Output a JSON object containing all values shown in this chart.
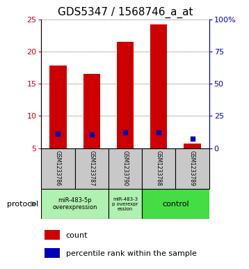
{
  "title": "GDS5347 / 1568746_a_at",
  "samples": [
    "GSM1233786",
    "GSM1233787",
    "GSM1233790",
    "GSM1233788",
    "GSM1233789"
  ],
  "counts": [
    17.8,
    16.5,
    21.5,
    24.2,
    5.7
  ],
  "percentile_ranks": [
    11.0,
    10.7,
    12.0,
    12.0,
    7.5
  ],
  "ylim_left": [
    5,
    25
  ],
  "ylim_right": [
    0,
    100
  ],
  "yticks_left": [
    5,
    10,
    15,
    20,
    25
  ],
  "yticks_right": [
    0,
    25,
    50,
    75,
    100
  ],
  "ytick_labels_right": [
    "0",
    "25",
    "50",
    "75",
    "100%"
  ],
  "bar_color": "#CC0000",
  "dot_color": "#0000BB",
  "bar_width": 0.5,
  "sample_box_color": "#C8C8C8",
  "group1_color": "#B0F0B0",
  "group2_color": "#B0F0B0",
  "group3_color": "#44DD44",
  "title_fontsize": 11,
  "axis_label_color_left": "#CC0000",
  "axis_label_color_right": "#0000BB",
  "legend_count_label": "count",
  "legend_pct_label": "percentile rank within the sample",
  "protocol_label": "protocol"
}
